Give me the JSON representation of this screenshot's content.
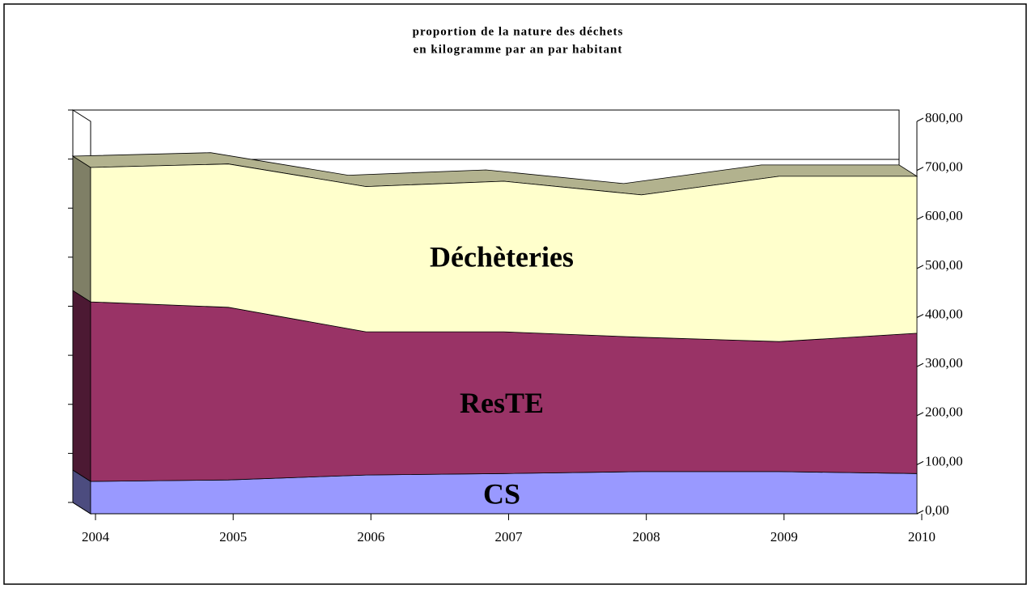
{
  "chart_data": {
    "type": "area3d",
    "title": [
      "proportion de la nature des déchets",
      "en kilogramme par an par habitant"
    ],
    "categories": [
      "2004",
      "2005",
      "2006",
      "2007",
      "2008",
      "2009",
      "2010"
    ],
    "series": [
      {
        "name": "CS",
        "color": "#9999ff",
        "values": [
          66,
          69,
          79,
          82,
          86,
          86,
          82
        ]
      },
      {
        "name": "ResTE",
        "color": "#993366",
        "values": [
          366,
          352,
          292,
          289,
          274,
          265,
          286
        ]
      },
      {
        "name": "Déchèteries",
        "color": "#ffffcc",
        "values": [
          274,
          292,
          296,
          307,
          290,
          337,
          320
        ]
      }
    ],
    "ylim": [
      0,
      800
    ],
    "yticks": [
      {
        "value": 0,
        "label": "0,00"
      },
      {
        "value": 100,
        "label": "100,00"
      },
      {
        "value": 200,
        "label": "200,00"
      },
      {
        "value": 300,
        "label": "300,00"
      },
      {
        "value": 400,
        "label": "400,00"
      },
      {
        "value": 500,
        "label": "500,00"
      },
      {
        "value": 600,
        "label": "600,00"
      },
      {
        "value": 700,
        "label": "700,00"
      },
      {
        "value": 800,
        "label": "800,00"
      }
    ],
    "stacked": true
  }
}
